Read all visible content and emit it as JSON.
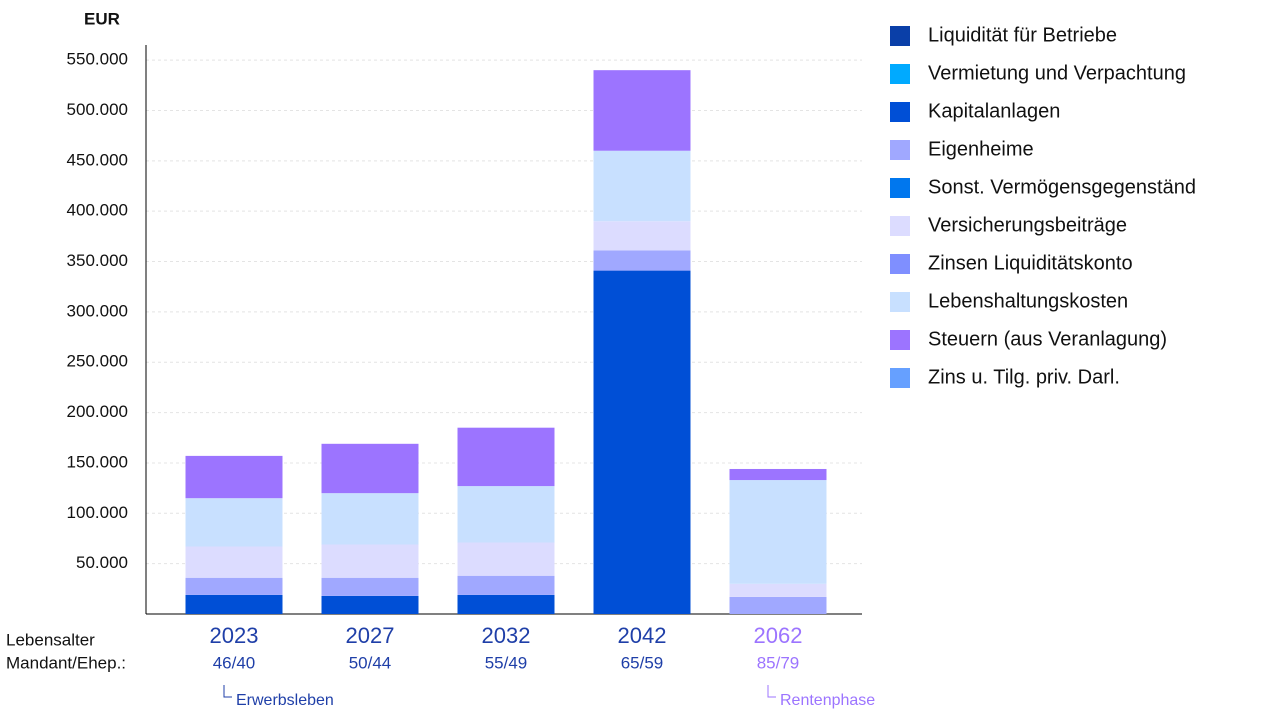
{
  "chart_data": {
    "type": "bar",
    "stacked": true,
    "y_unit_label": "EUR",
    "row_label_1": "Lebensalter",
    "row_label_2": "Mandant/Ehep.:",
    "categories": [
      "2023",
      "2027",
      "2032",
      "2042",
      "2062"
    ],
    "ages": [
      "46/40",
      "50/44",
      "55/49",
      "65/59",
      "85/79"
    ],
    "category_colors": [
      "#1f3fa8",
      "#1f3fa8",
      "#1f3fa8",
      "#1f3fa8",
      "#9c74ff"
    ],
    "phases": [
      {
        "label": "Erwerbsleben",
        "color": "#1f3fa8",
        "category": 0
      },
      {
        "label": "Rentenphase",
        "color": "#9c74ff",
        "category": 4
      }
    ],
    "series": [
      {
        "name": "Liquidität für Betriebe",
        "color": "#0a3fa8",
        "values": [
          0,
          0,
          0,
          0,
          0
        ]
      },
      {
        "name": "Vermietung und Verpachtung",
        "color": "#00aaff",
        "values": [
          0,
          0,
          0,
          0,
          0
        ]
      },
      {
        "name": "Kapitalanlagen",
        "color": "#004fd6",
        "values": [
          19000,
          18000,
          19000,
          341000,
          0
        ]
      },
      {
        "name": "Eigenheime",
        "color": "#a0a8ff",
        "values": [
          17000,
          18000,
          19000,
          20000,
          17000
        ]
      },
      {
        "name": "Sonst. Vermögensgegenständ",
        "color": "#0077ee",
        "values": [
          0,
          0,
          0,
          0,
          0
        ]
      },
      {
        "name": "Versicherungsbeiträge",
        "color": "#dcdcff",
        "values": [
          31000,
          33000,
          33000,
          29000,
          13000
        ]
      },
      {
        "name": "Zinsen Liquiditätskonto",
        "color": "#7f8fff",
        "values": [
          0,
          0,
          0,
          0,
          0
        ]
      },
      {
        "name": "Lebenshaltungskosten",
        "color": "#c8e0ff",
        "values": [
          48000,
          51000,
          56000,
          70000,
          103000
        ]
      },
      {
        "name": "Steuern (aus Veranlagung)",
        "color": "#9c74ff",
        "values": [
          42000,
          49000,
          58000,
          80000,
          11000
        ]
      },
      {
        "name": "Zins u. Tilg. priv. Darl.",
        "color": "#66a0ff",
        "values": [
          0,
          0,
          0,
          0,
          0
        ]
      }
    ],
    "ylim": [
      0,
      565000
    ],
    "yticks": [
      {
        "value": 50000,
        "label": "50.000"
      },
      {
        "value": 100000,
        "label": "100.000"
      },
      {
        "value": 150000,
        "label": "150.000"
      },
      {
        "value": 200000,
        "label": "200.000"
      },
      {
        "value": 250000,
        "label": "250.000"
      },
      {
        "value": 300000,
        "label": "300.000"
      },
      {
        "value": 350000,
        "label": "350.000"
      },
      {
        "value": 400000,
        "label": "400.000"
      },
      {
        "value": 450000,
        "label": "450.000"
      },
      {
        "value": 500000,
        "label": "500.000"
      },
      {
        "value": 550000,
        "label": "550.000"
      }
    ],
    "grid": true
  }
}
